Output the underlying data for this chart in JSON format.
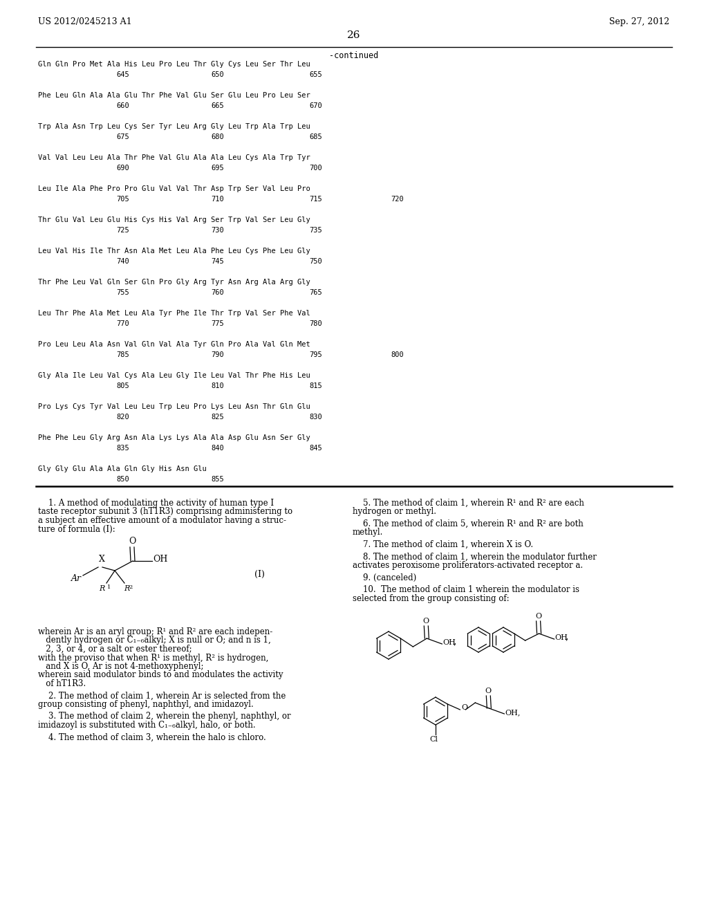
{
  "left_header": "US 2012/0245213 A1",
  "right_header": "Sep. 27, 2012",
  "page_number": "26",
  "bg_color": "#ffffff",
  "seq_lines": [
    {
      "seq": "Gln Gln Pro Met Ala His Leu Pro Leu Thr Gly Cys Leu Ser Thr Leu",
      "nums": [
        [
          "645",
          168
        ],
        [
          "650",
          305
        ],
        [
          "655",
          447
        ]
      ]
    },
    {
      "seq": "Phe Leu Gln Ala Ala Glu Thr Phe Val Glu Ser Glu Leu Pro Leu Ser",
      "nums": [
        [
          "660",
          168
        ],
        [
          "665",
          305
        ],
        [
          "670",
          447
        ]
      ]
    },
    {
      "seq": "Trp Ala Asn Trp Leu Cys Ser Tyr Leu Arg Gly Leu Trp Ala Trp Leu",
      "nums": [
        [
          "675",
          168
        ],
        [
          "680",
          305
        ],
        [
          "685",
          447
        ]
      ]
    },
    {
      "seq": "Val Val Leu Leu Ala Thr Phe Val Glu Ala Ala Leu Cys Ala Trp Tyr",
      "nums": [
        [
          "690",
          168
        ],
        [
          "695",
          305
        ],
        [
          "700",
          447
        ]
      ]
    },
    {
      "seq": "Leu Ile Ala Phe Pro Pro Glu Val Val Thr Asp Trp Ser Val Leu Pro",
      "nums": [
        [
          "705",
          168
        ],
        [
          "710",
          305
        ],
        [
          "715",
          447
        ],
        [
          "720",
          565
        ]
      ]
    },
    {
      "seq": "Thr Glu Val Leu Glu His Cys His Val Arg Ser Trp Val Ser Leu Gly",
      "nums": [
        [
          "725",
          168
        ],
        [
          "730",
          305
        ],
        [
          "735",
          447
        ]
      ]
    },
    {
      "seq": "Leu Val His Ile Thr Asn Ala Met Leu Ala Phe Leu Cys Phe Leu Gly",
      "nums": [
        [
          "740",
          168
        ],
        [
          "745",
          305
        ],
        [
          "750",
          447
        ]
      ]
    },
    {
      "seq": "Thr Phe Leu Val Gln Ser Gln Pro Gly Arg Tyr Asn Arg Ala Arg Gly",
      "nums": [
        [
          "755",
          168
        ],
        [
          "760",
          305
        ],
        [
          "765",
          447
        ]
      ]
    },
    {
      "seq": "Leu Thr Phe Ala Met Leu Ala Tyr Phe Ile Thr Trp Val Ser Phe Val",
      "nums": [
        [
          "770",
          168
        ],
        [
          "775",
          305
        ],
        [
          "780",
          447
        ]
      ]
    },
    {
      "seq": "Pro Leu Leu Ala Asn Val Gln Val Ala Tyr Gln Pro Ala Val Gln Met",
      "nums": [
        [
          "785",
          168
        ],
        [
          "790",
          305
        ],
        [
          "795",
          447
        ],
        [
          "800",
          565
        ]
      ]
    },
    {
      "seq": "Gly Ala Ile Leu Val Cys Ala Leu Gly Ile Leu Val Thr Phe His Leu",
      "nums": [
        [
          "805",
          168
        ],
        [
          "810",
          305
        ],
        [
          "815",
          447
        ]
      ]
    },
    {
      "seq": "Pro Lys Cys Tyr Val Leu Leu Trp Leu Pro Lys Leu Asn Thr Gln Glu",
      "nums": [
        [
          "820",
          168
        ],
        [
          "825",
          305
        ],
        [
          "830",
          447
        ]
      ]
    },
    {
      "seq": "Phe Phe Leu Gly Arg Asn Ala Lys Lys Ala Ala Asp Glu Asn Ser Gly",
      "nums": [
        [
          "835",
          168
        ],
        [
          "840",
          305
        ],
        [
          "845",
          447
        ]
      ]
    },
    {
      "seq": "Gly Gly Glu Ala Ala Gln Gly His Asn Glu",
      "nums": [
        [
          "850",
          168
        ],
        [
          "855",
          305
        ]
      ]
    }
  ]
}
